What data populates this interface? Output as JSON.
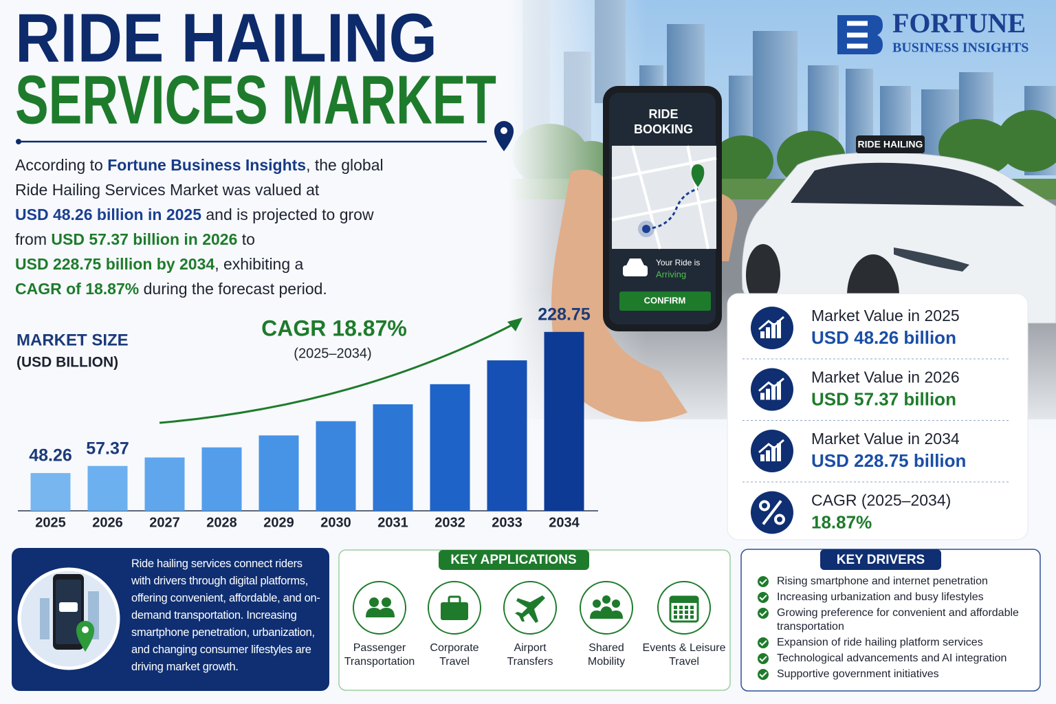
{
  "header": {
    "title_line1": "RIDE HAILING",
    "title_line2": "SERVICES MARKET"
  },
  "logo": {
    "name": "FORTUNE",
    "tagline": "BUSINESS INSIGHTS"
  },
  "intro": {
    "lines": [
      [
        {
          "text": "According to ",
          "style": "plain"
        },
        {
          "text": "Fortune Business Insights",
          "style": "brand"
        },
        {
          "text": ", the global",
          "style": "plain"
        }
      ],
      [
        {
          "text": "Ride Hailing Services Market was valued at",
          "style": "plain"
        }
      ],
      [
        {
          "text": "USD 48.26 billion in 2025",
          "style": "blue"
        },
        {
          "text": " and is projected to grow",
          "style": "plain"
        }
      ],
      [
        {
          "text": "from ",
          "style": "plain"
        },
        {
          "text": "USD 57.37 billion in 2026",
          "style": "green"
        },
        {
          "text": " to",
          "style": "plain"
        }
      ],
      [
        {
          "text": "USD 228.75 billion by 2034",
          "style": "green"
        },
        {
          "text": ", exhibiting a",
          "style": "plain"
        }
      ],
      [
        {
          "text": "CAGR of 18.87%",
          "style": "green"
        },
        {
          "text": " during the forecast period.",
          "style": "plain"
        }
      ]
    ]
  },
  "chart_data": {
    "type": "bar",
    "title": "MARKET SIZE",
    "subtitle": "(USD BILLION)",
    "categories": [
      "2025",
      "2026",
      "2027",
      "2028",
      "2029",
      "2030",
      "2031",
      "2032",
      "2033",
      "2034"
    ],
    "values": [
      48.26,
      57.37,
      68.2,
      81.1,
      96.4,
      114.6,
      136.2,
      161.9,
      192.4,
      228.75
    ],
    "value_labels": [
      "48.26",
      "57.37",
      null,
      null,
      null,
      null,
      null,
      null,
      null,
      "228.75"
    ],
    "colors": [
      "#78b6f0",
      "#6cb0ef",
      "#5fa6ec",
      "#539deb",
      "#4793e6",
      "#3a86df",
      "#2c76d6",
      "#1e63c8",
      "#1650b5",
      "#0d3a94"
    ],
    "ylim": [
      0,
      240
    ],
    "annotation": {
      "title": "CAGR 18.87%",
      "subtitle": "(2025–2034)"
    }
  },
  "phone": {
    "header_line1": "RIDE",
    "header_line2": "BOOKING",
    "status_line1": "Your Ride is",
    "status_line2": "Arriving",
    "button": "CONFIRM"
  },
  "car_sign": "RIDE HAILING",
  "stats": [
    {
      "label": "Market Value in 2025",
      "value": "USD 48.26 billion",
      "style": "blue",
      "icon": "chart"
    },
    {
      "label": "Market Value in 2026",
      "value": "USD 57.37 billion",
      "style": "green",
      "icon": "chart"
    },
    {
      "label": "Market Value in 2034",
      "value": "USD 228.75 billion",
      "style": "blue",
      "icon": "chart"
    },
    {
      "label": "CAGR (2025–2034)",
      "value": "18.87%",
      "style": "green",
      "icon": "percent"
    }
  ],
  "description": "Ride hailing services connect riders with drivers through digital platforms, offering convenient, affordable, and on-demand transportation. Increasing smartphone penetration, urbanization, and changing consumer lifestyles are driving market growth.",
  "applications": {
    "title": "KEY APPLICATIONS",
    "items": [
      {
        "lines": [
          "Passenger",
          "Transportation"
        ],
        "icon": "people"
      },
      {
        "lines": [
          "Corporate",
          "Travel"
        ],
        "icon": "briefcase"
      },
      {
        "lines": [
          "Airport",
          "Transfers"
        ],
        "icon": "plane"
      },
      {
        "lines": [
          "Shared",
          "Mobility"
        ],
        "icon": "group"
      },
      {
        "lines": [
          "Events & Leisure",
          "Travel"
        ],
        "icon": "calendar"
      }
    ]
  },
  "drivers": {
    "title": "KEY DRIVERS",
    "items": [
      "Rising smartphone and internet penetration",
      "Increasing urbanization and busy lifestyles",
      "Growing preference for convenient and affordable transportation",
      "Expansion of ride hailing platform services",
      "Technological advancements and AI integration",
      "Supportive government initiatives"
    ]
  }
}
